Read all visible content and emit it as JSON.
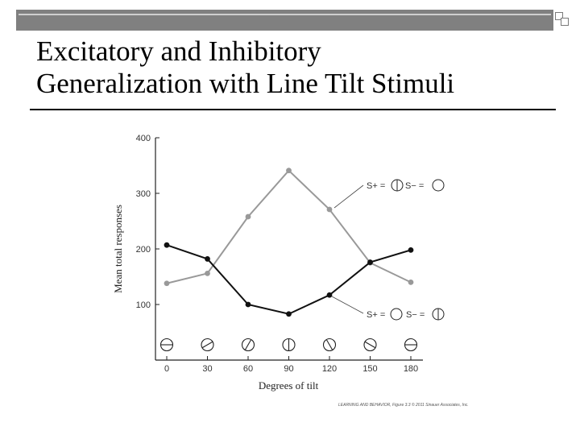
{
  "slide": {
    "title_line1": "Excitatory and Inhibitory",
    "title_line2": "Generalization with Line Tilt Stimuli",
    "credit": "LEARNING AND BEHAVIOR, Figure 3.3 © 2011 Sinauer Associates, Inc."
  },
  "chart_data": {
    "type": "line",
    "xlabel": "Degrees of tilt",
    "ylabel": "Mean total responses",
    "x": [
      0,
      30,
      60,
      90,
      120,
      150,
      180
    ],
    "xticks": [
      "0",
      "30",
      "60",
      "90",
      "120",
      "150",
      "180"
    ],
    "yticks": [
      "100",
      "200",
      "300",
      "400"
    ],
    "ylim": [
      0,
      400
    ],
    "series": [
      {
        "key": "s_plus_vertical",
        "values": [
          138,
          156,
          258,
          341,
          271,
          175,
          140
        ],
        "color": "#999999",
        "annotation": {
          "prefix_a": "S+ =",
          "prefix_b": "S− ="
        }
      },
      {
        "key": "s_plus_blank",
        "values": [
          207,
          182,
          100,
          83,
          117,
          176,
          198
        ],
        "color": "#111111",
        "annotation": {
          "prefix_a": "S+ =",
          "prefix_b": "S− ="
        }
      }
    ],
    "stimulus_icons": [
      "horizontal-line-circle",
      "tilt-30-circle",
      "tilt-60-circle",
      "vertical-line-circle",
      "tilt-120-circle",
      "tilt-150-circle",
      "horizontal-line-circle"
    ],
    "grid": false
  }
}
